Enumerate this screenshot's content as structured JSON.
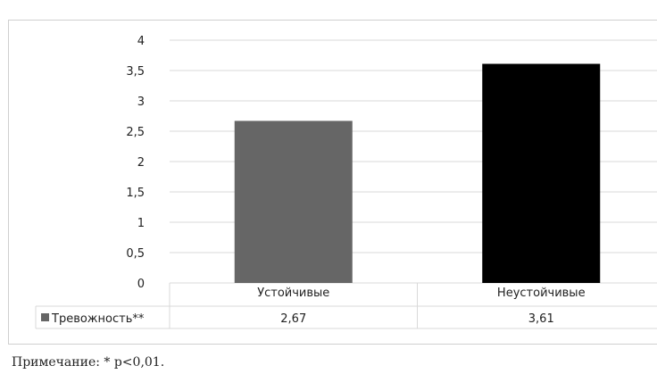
{
  "chart_data": {
    "type": "bar",
    "categories": [
      "Устойчивые",
      "Неустойчивые"
    ],
    "series": [
      {
        "name": "Тревожность**",
        "values": [
          2.67,
          3.61
        ],
        "value_labels": [
          "2,67",
          "3,61"
        ],
        "colors": [
          "#666666",
          "#000000"
        ]
      }
    ],
    "ylim": [
      0,
      4
    ],
    "yticks": [
      0,
      0.5,
      1,
      1.5,
      2,
      2.5,
      3,
      3.5,
      4
    ],
    "ytick_labels": [
      "0",
      "0,5",
      "1",
      "1,5",
      "2",
      "2,5",
      "3",
      "3,5",
      "4"
    ],
    "grid": true,
    "legend_placement": "data-table-left",
    "legend_marker_color": "#666666"
  },
  "note": "Примечание: * p<0,01."
}
